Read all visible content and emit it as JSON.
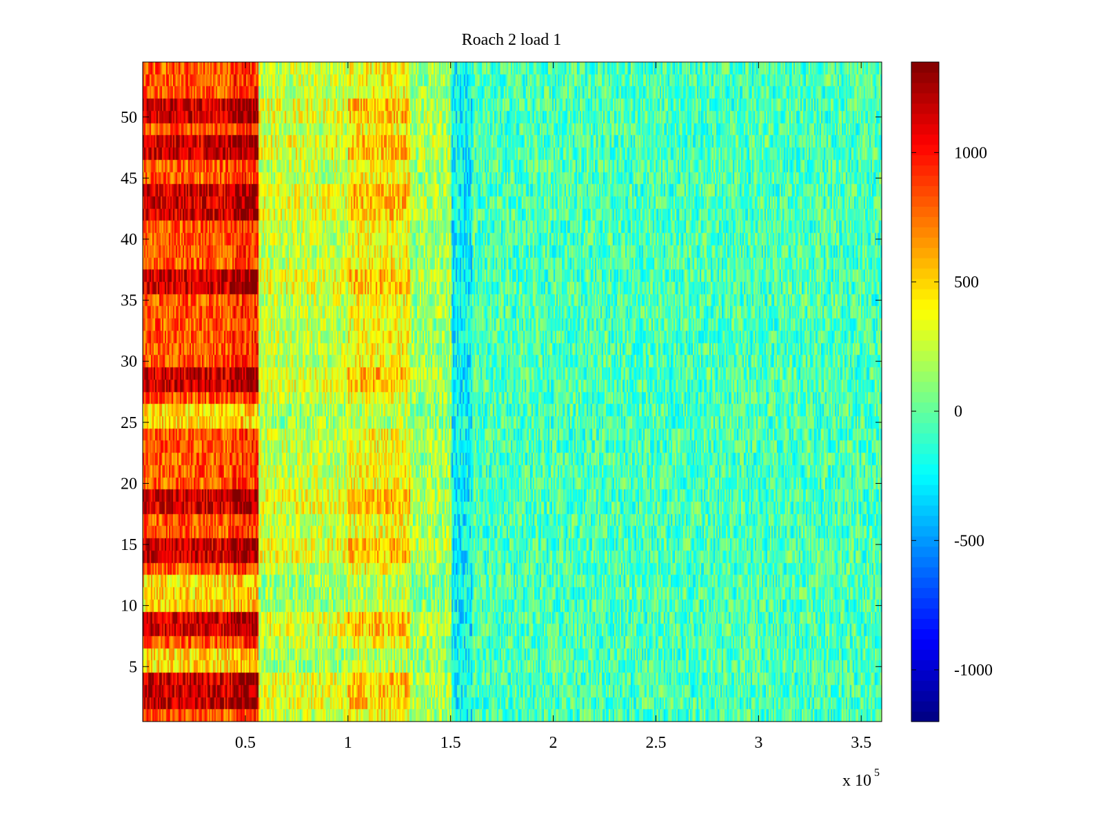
{
  "chart_data": {
    "type": "heatmap",
    "title": "Roach 2 load 1",
    "xlabel": "",
    "ylabel": "",
    "x_range": [
      0,
      360000
    ],
    "y_range": [
      0.5,
      54.5
    ],
    "x_ticks": [
      50000,
      100000,
      150000,
      200000,
      250000,
      300000,
      350000
    ],
    "x_tick_labels": [
      "0.5",
      "1",
      "1.5",
      "2",
      "2.5",
      "3",
      "3.5"
    ],
    "x_exponent_label": "x 10",
    "x_exponent_power": "5",
    "y_ticks": [
      5,
      10,
      15,
      20,
      25,
      30,
      35,
      40,
      45,
      50
    ],
    "y_tick_labels": [
      "5",
      "10",
      "15",
      "20",
      "25",
      "30",
      "35",
      "40",
      "45",
      "50"
    ],
    "rows": 54,
    "colorbar": {
      "range": [
        -1200,
        1350
      ],
      "ticks": [
        -1000,
        -500,
        0,
        500,
        1000
      ],
      "tick_labels": [
        "-1000",
        "-500",
        "0",
        "500",
        "1000"
      ],
      "colormap": "jet"
    },
    "column_profile": [
      {
        "x_start": 0,
        "x_end": 43000,
        "mean": 850
      },
      {
        "x_start": 43000,
        "x_end": 56000,
        "mean": 950
      },
      {
        "x_start": 56000,
        "x_end": 100000,
        "mean": 250
      },
      {
        "x_start": 100000,
        "x_end": 130000,
        "mean": 400
      },
      {
        "x_start": 130000,
        "x_end": 150000,
        "mean": 150
      },
      {
        "x_start": 150000,
        "x_end": 160000,
        "mean": -250
      },
      {
        "x_start": 160000,
        "x_end": 360000,
        "mean": -60
      }
    ],
    "strong_rows": [
      2,
      3,
      4,
      8,
      9,
      14,
      15,
      18,
      19,
      28,
      29,
      36,
      37,
      42,
      43,
      44,
      47,
      48,
      50,
      51
    ],
    "weak_rows": [
      5,
      6,
      10,
      11,
      12,
      25,
      26
    ]
  }
}
